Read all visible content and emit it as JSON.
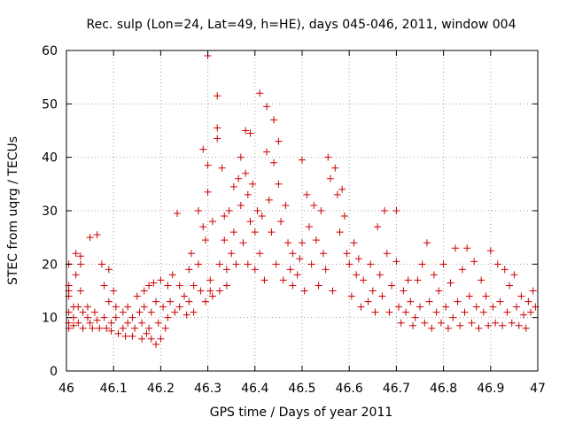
{
  "chart_data": {
    "type": "scatter",
    "title": "Rec. sulp (Lon=24, Lat=49, h=HE), days 045-046, 2011, window 004",
    "xlabel": "GPS time / Days of year 2011",
    "ylabel": "STEC from uqrg / TECUs",
    "xlim": [
      46,
      47
    ],
    "ylim": [
      0,
      60
    ],
    "xticks": [
      "46",
      "46.1",
      "46.2",
      "46.3",
      "46.4",
      "46.5",
      "46.6",
      "46.7",
      "46.8",
      "46.9",
      "47"
    ],
    "yticks": [
      "0",
      "10",
      "20",
      "30",
      "40",
      "50",
      "60"
    ],
    "grid": true,
    "marker": "plus",
    "color": "#cc0000",
    "series": [
      {
        "points": [
          [
            46.005,
            20.0
          ],
          [
            46.005,
            16.0
          ],
          [
            46.005,
            15.0
          ],
          [
            46.005,
            14.0
          ],
          [
            46.005,
            11.0
          ],
          [
            46.005,
            9.0
          ],
          [
            46.005,
            8.0
          ],
          [
            46.015,
            12.0
          ],
          [
            46.015,
            10.0
          ],
          [
            46.015,
            8.5
          ],
          [
            46.02,
            22.0
          ],
          [
            46.02,
            18.0
          ],
          [
            46.025,
            12.0
          ],
          [
            46.025,
            9.0
          ],
          [
            46.03,
            21.5
          ],
          [
            46.03,
            20.0
          ],
          [
            46.03,
            15.0
          ],
          [
            46.035,
            11.0
          ],
          [
            46.035,
            8.0
          ],
          [
            46.045,
            12.0
          ],
          [
            46.045,
            10.0
          ],
          [
            46.05,
            25.0
          ],
          [
            46.05,
            9.0
          ],
          [
            46.055,
            8.0
          ],
          [
            46.06,
            11.0
          ],
          [
            46.065,
            25.5
          ],
          [
            46.065,
            9.5
          ],
          [
            46.07,
            8.0
          ],
          [
            46.075,
            20.0
          ],
          [
            46.08,
            16.0
          ],
          [
            46.08,
            10.0
          ],
          [
            46.085,
            8.0
          ],
          [
            46.09,
            19.0
          ],
          [
            46.09,
            13.0
          ],
          [
            46.095,
            9.0
          ],
          [
            46.095,
            7.5
          ],
          [
            46.1,
            15.0
          ],
          [
            46.105,
            12.0
          ],
          [
            46.105,
            10.0
          ],
          [
            46.11,
            7.0
          ],
          [
            46.12,
            11.0
          ],
          [
            46.12,
            8.0
          ],
          [
            46.125,
            6.5
          ],
          [
            46.13,
            12.0
          ],
          [
            46.13,
            9.0
          ],
          [
            46.14,
            10.0
          ],
          [
            46.14,
            6.5
          ],
          [
            46.145,
            8.0
          ],
          [
            46.15,
            14.0
          ],
          [
            46.155,
            11.0
          ],
          [
            46.16,
            6.0
          ],
          [
            46.16,
            9.0
          ],
          [
            46.165,
            15.0
          ],
          [
            46.165,
            12.0
          ],
          [
            46.17,
            7.0
          ],
          [
            46.175,
            16.0
          ],
          [
            46.175,
            8.0
          ],
          [
            46.18,
            11.0
          ],
          [
            46.18,
            6.0
          ],
          [
            46.185,
            16.5
          ],
          [
            46.19,
            13.0
          ],
          [
            46.19,
            5.0
          ],
          [
            46.195,
            9.0
          ],
          [
            46.2,
            17.0
          ],
          [
            46.2,
            6.0
          ],
          [
            46.205,
            12.0
          ],
          [
            46.21,
            8.0
          ],
          [
            46.215,
            16.0
          ],
          [
            46.215,
            10.0
          ],
          [
            46.22,
            13.0
          ],
          [
            46.225,
            18.0
          ],
          [
            46.23,
            11.0
          ],
          [
            46.235,
            29.5
          ],
          [
            46.24,
            16.0
          ],
          [
            46.24,
            12.0
          ],
          [
            46.25,
            14.0
          ],
          [
            46.255,
            10.5
          ],
          [
            46.26,
            19.0
          ],
          [
            46.26,
            13.0
          ],
          [
            46.265,
            22.0
          ],
          [
            46.27,
            16.0
          ],
          [
            46.27,
            11.0
          ],
          [
            46.28,
            30.0
          ],
          [
            46.28,
            20.0
          ],
          [
            46.285,
            15.0
          ],
          [
            46.29,
            41.5
          ],
          [
            46.29,
            27.0
          ],
          [
            46.295,
            24.5
          ],
          [
            46.295,
            13.0
          ],
          [
            46.3,
            59.0
          ],
          [
            46.3,
            38.5
          ],
          [
            46.3,
            33.5
          ],
          [
            46.305,
            17.0
          ],
          [
            46.305,
            15.0
          ],
          [
            46.31,
            28.0
          ],
          [
            46.31,
            14.0
          ],
          [
            46.32,
            51.5
          ],
          [
            46.32,
            45.5
          ],
          [
            46.32,
            43.5
          ],
          [
            46.325,
            20.0
          ],
          [
            46.325,
            15.0
          ],
          [
            46.33,
            38.0
          ],
          [
            46.335,
            29.0
          ],
          [
            46.335,
            24.5
          ],
          [
            46.34,
            19.0
          ],
          [
            46.34,
            16.0
          ],
          [
            46.345,
            30.0
          ],
          [
            46.35,
            22.0
          ],
          [
            46.355,
            34.5
          ],
          [
            46.355,
            26.0
          ],
          [
            46.36,
            20.0
          ],
          [
            46.365,
            36.0
          ],
          [
            46.37,
            40.0
          ],
          [
            46.37,
            31.0
          ],
          [
            46.375,
            24.0
          ],
          [
            46.38,
            45.0
          ],
          [
            46.38,
            37.0
          ],
          [
            46.385,
            33.0
          ],
          [
            46.385,
            20.0
          ],
          [
            46.39,
            44.5
          ],
          [
            46.39,
            28.0
          ],
          [
            46.395,
            35.0
          ],
          [
            46.4,
            26.0
          ],
          [
            46.4,
            19.0
          ],
          [
            46.405,
            30.0
          ],
          [
            46.41,
            52.0
          ],
          [
            46.41,
            22.0
          ],
          [
            46.415,
            29.0
          ],
          [
            46.42,
            17.0
          ],
          [
            46.425,
            49.5
          ],
          [
            46.425,
            41.0
          ],
          [
            46.43,
            32.0
          ],
          [
            46.435,
            26.0
          ],
          [
            46.44,
            47.0
          ],
          [
            46.44,
            39.0
          ],
          [
            46.445,
            20.0
          ],
          [
            46.45,
            43.0
          ],
          [
            46.45,
            35.0
          ],
          [
            46.455,
            28.0
          ],
          [
            46.46,
            17.0
          ],
          [
            46.465,
            31.0
          ],
          [
            46.47,
            24.0
          ],
          [
            46.475,
            19.0
          ],
          [
            46.48,
            22.0
          ],
          [
            46.48,
            16.0
          ],
          [
            46.49,
            18.0
          ],
          [
            46.495,
            21.0
          ],
          [
            46.5,
            39.5
          ],
          [
            46.5,
            24.0
          ],
          [
            46.505,
            15.0
          ],
          [
            46.51,
            33.0
          ],
          [
            46.515,
            27.0
          ],
          [
            46.52,
            20.0
          ],
          [
            46.525,
            31.0
          ],
          [
            46.53,
            24.5
          ],
          [
            46.535,
            16.0
          ],
          [
            46.54,
            30.0
          ],
          [
            46.545,
            22.0
          ],
          [
            46.55,
            19.0
          ],
          [
            46.555,
            40.0
          ],
          [
            46.56,
            36.0
          ],
          [
            46.565,
            15.0
          ],
          [
            46.57,
            38.0
          ],
          [
            46.575,
            33.0
          ],
          [
            46.58,
            26.0
          ],
          [
            46.585,
            34.0
          ],
          [
            46.59,
            29.0
          ],
          [
            46.595,
            22.0
          ],
          [
            46.6,
            20.0
          ],
          [
            46.605,
            14.0
          ],
          [
            46.61,
            24.0
          ],
          [
            46.615,
            18.0
          ],
          [
            46.62,
            21.0
          ],
          [
            46.625,
            12.0
          ],
          [
            46.63,
            17.0
          ],
          [
            46.64,
            13.0
          ],
          [
            46.645,
            20.0
          ],
          [
            46.65,
            15.0
          ],
          [
            46.655,
            11.0
          ],
          [
            46.66,
            27.0
          ],
          [
            46.665,
            18.0
          ],
          [
            46.67,
            14.0
          ],
          [
            46.675,
            30.0
          ],
          [
            46.68,
            22.0
          ],
          [
            46.685,
            11.0
          ],
          [
            46.69,
            16.0
          ],
          [
            46.7,
            30.0
          ],
          [
            46.7,
            20.5
          ],
          [
            46.705,
            12.0
          ],
          [
            46.71,
            9.0
          ],
          [
            46.715,
            15.0
          ],
          [
            46.72,
            11.0
          ],
          [
            46.725,
            17.0
          ],
          [
            46.73,
            13.0
          ],
          [
            46.735,
            8.5
          ],
          [
            46.74,
            10.0
          ],
          [
            46.745,
            17.0
          ],
          [
            46.75,
            12.0
          ],
          [
            46.755,
            20.0
          ],
          [
            46.76,
            9.0
          ],
          [
            46.765,
            24.0
          ],
          [
            46.77,
            13.0
          ],
          [
            46.775,
            8.0
          ],
          [
            46.78,
            18.0
          ],
          [
            46.785,
            11.0
          ],
          [
            46.79,
            15.0
          ],
          [
            46.795,
            9.0
          ],
          [
            46.8,
            20.0
          ],
          [
            46.805,
            12.0
          ],
          [
            46.81,
            8.0
          ],
          [
            46.815,
            16.5
          ],
          [
            46.82,
            10.0
          ],
          [
            46.825,
            23.0
          ],
          [
            46.83,
            13.0
          ],
          [
            46.835,
            8.5
          ],
          [
            46.84,
            19.0
          ],
          [
            46.845,
            11.0
          ],
          [
            46.85,
            23.0
          ],
          [
            46.855,
            14.0
          ],
          [
            46.86,
            9.0
          ],
          [
            46.865,
            20.5
          ],
          [
            46.87,
            12.0
          ],
          [
            46.875,
            8.0
          ],
          [
            46.88,
            17.0
          ],
          [
            46.885,
            11.0
          ],
          [
            46.89,
            14.0
          ],
          [
            46.895,
            8.5
          ],
          [
            46.9,
            22.5
          ],
          [
            46.905,
            12.0
          ],
          [
            46.91,
            9.0
          ],
          [
            46.915,
            20.0
          ],
          [
            46.92,
            13.0
          ],
          [
            46.925,
            8.5
          ],
          [
            46.93,
            19.0
          ],
          [
            46.935,
            11.0
          ],
          [
            46.94,
            16.0
          ],
          [
            46.945,
            9.0
          ],
          [
            46.95,
            18.0
          ],
          [
            46.955,
            12.0
          ],
          [
            46.96,
            8.5
          ],
          [
            46.965,
            14.0
          ],
          [
            46.97,
            10.5
          ],
          [
            46.975,
            8.0
          ],
          [
            46.98,
            13.0
          ],
          [
            46.985,
            11.0
          ],
          [
            46.99,
            15.0
          ],
          [
            46.995,
            12.0
          ]
        ]
      }
    ]
  }
}
